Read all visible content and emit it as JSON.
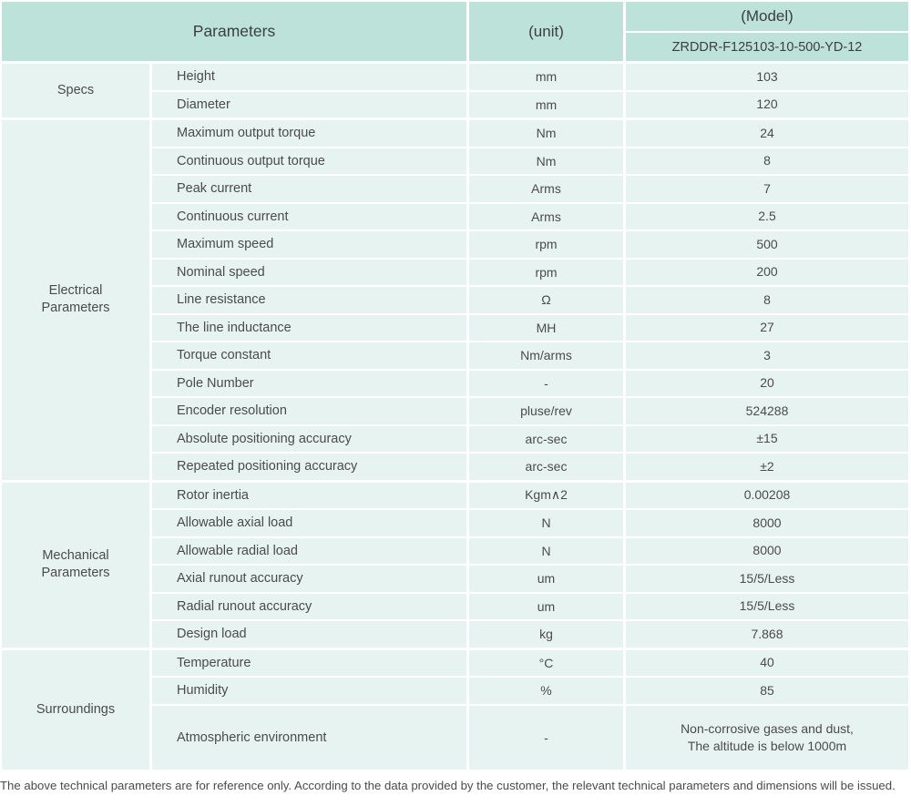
{
  "header": {
    "parameters_label": "Parameters",
    "unit_label": "(unit)",
    "model_label": "(Model)",
    "model_value": "ZRDDR-F125103-10-500-YD-12"
  },
  "sections": [
    {
      "label": "Specs",
      "rows": [
        {
          "name": "Height",
          "unit": "mm",
          "value": "103"
        },
        {
          "name": "Diameter",
          "unit": "mm",
          "value": "120"
        }
      ]
    },
    {
      "label": "Electrical\nParameters",
      "rows": [
        {
          "name": "Maximum output torque",
          "unit": "Nm",
          "value": "24"
        },
        {
          "name": "Continuous output torque",
          "unit": "Nm",
          "value": "8"
        },
        {
          "name": "Peak current",
          "unit": "Arms",
          "value": "7"
        },
        {
          "name": "Continuous current",
          "unit": "Arms",
          "value": "2.5"
        },
        {
          "name": "Maximum speed",
          "unit": "rpm",
          "value": "500"
        },
        {
          "name": "Nominal speed",
          "unit": "rpm",
          "value": "200"
        },
        {
          "name": "Line resistance",
          "unit": "Ω",
          "value": "8"
        },
        {
          "name": "The line inductance",
          "unit": "MH",
          "value": "27"
        },
        {
          "name": "Torque constant",
          "unit": "Nm/arms",
          "value": "3"
        },
        {
          "name": "Pole Number",
          "unit": "-",
          "value": "20"
        },
        {
          "name": "Encoder resolution",
          "unit": "pluse/rev",
          "value": "524288"
        },
        {
          "name": "Absolute positioning accuracy",
          "unit": "arc-sec",
          "value": "±15"
        },
        {
          "name": "Repeated positioning accuracy",
          "unit": "arc-sec",
          "value": "±2"
        }
      ]
    },
    {
      "label": "Mechanical\nParameters",
      "rows": [
        {
          "name": "Rotor inertia",
          "unit": "Kgm∧2",
          "value": "0.00208"
        },
        {
          "name": "Allowable axial load",
          "unit": "N",
          "value": "8000"
        },
        {
          "name": "Allowable radial load",
          "unit": "N",
          "value": "8000"
        },
        {
          "name": "Axial runout accuracy",
          "unit": "um",
          "value": "15/5/Less"
        },
        {
          "name": "Radial runout accuracy",
          "unit": "um",
          "value": "15/5/Less"
        },
        {
          "name": "Design load",
          "unit": "kg",
          "value": "7.868"
        }
      ]
    },
    {
      "label": "Surroundings",
      "rows": [
        {
          "name": "Temperature",
          "unit": "°C",
          "value": "40"
        },
        {
          "name": "Humidity",
          "unit": "%",
          "value": "85"
        },
        {
          "name": "Atmospheric environment",
          "unit": "-",
          "value": "Non-corrosive gases and dust,\nThe altitude is below 1000m"
        }
      ]
    }
  ],
  "footer_note": "The above technical parameters are for reference only. According to the data provided by the customer, the relevant technical parameters and dimensions will be issued.",
  "colors": {
    "header_bg": "#bce2da",
    "cell_bg": "#e7f3f0",
    "text": "#4b4b4b"
  }
}
